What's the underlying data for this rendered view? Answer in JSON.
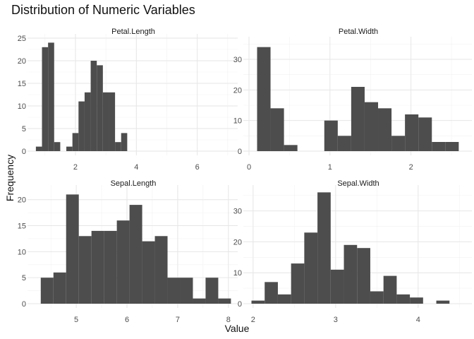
{
  "chart_data": {
    "type": "histogram",
    "title": "Distribution of Numeric Variables",
    "xlabel": "Value",
    "ylabel": "Frequency",
    "facet_layout": "2x2, free scales",
    "bar_color": "#4d4d4d",
    "grid": true,
    "panels": [
      {
        "name": "Petal.Length",
        "bin_start": 0.7,
        "bin_width": 0.2,
        "counts": [
          1,
          23,
          24,
          2,
          0,
          1,
          4,
          11,
          13,
          20,
          19,
          13,
          13,
          2,
          4
        ],
        "xlim": [
          0.61,
          7.19
        ],
        "x_ticks": [
          2,
          4,
          6
        ],
        "ylim": [
          0,
          25
        ],
        "y_ticks": [
          0,
          5,
          10,
          15,
          20,
          25
        ]
      },
      {
        "name": "Petal.Width",
        "bin_start": 0.1,
        "bin_width": 0.166,
        "counts": [
          34,
          14,
          2,
          0,
          0,
          10,
          5,
          21,
          16,
          14,
          5,
          12,
          11,
          3,
          3
        ],
        "xlim": [
          0,
          2.7
        ],
        "x_ticks": [
          0,
          1,
          2
        ],
        "ylim": [
          0,
          36
        ],
        "y_ticks": [
          0,
          10,
          20,
          30
        ]
      },
      {
        "name": "Sepal.Length",
        "bin_start": 4.3,
        "bin_width": 0.25,
        "counts": [
          5,
          6,
          21,
          13,
          14,
          14,
          16,
          19,
          12,
          13,
          5,
          5,
          1,
          5,
          1
        ],
        "xlim": [
          4.15,
          8.1
        ],
        "x_ticks": [
          5,
          6,
          7,
          8
        ],
        "ylim": [
          0,
          22
        ],
        "y_ticks": [
          0,
          5,
          10,
          15,
          20
        ]
      },
      {
        "name": "Sepal.Width",
        "bin_start": 1.98,
        "bin_width": 0.16,
        "counts": [
          1,
          7,
          3,
          13,
          23,
          36,
          11,
          19,
          18,
          4,
          9,
          3,
          2,
          0,
          1
        ],
        "xlim": [
          1.95,
          4.6
        ],
        "x_ticks": [
          2,
          3,
          4
        ],
        "ylim": [
          0,
          37
        ],
        "y_ticks": [
          0,
          10,
          20,
          30
        ]
      }
    ]
  }
}
